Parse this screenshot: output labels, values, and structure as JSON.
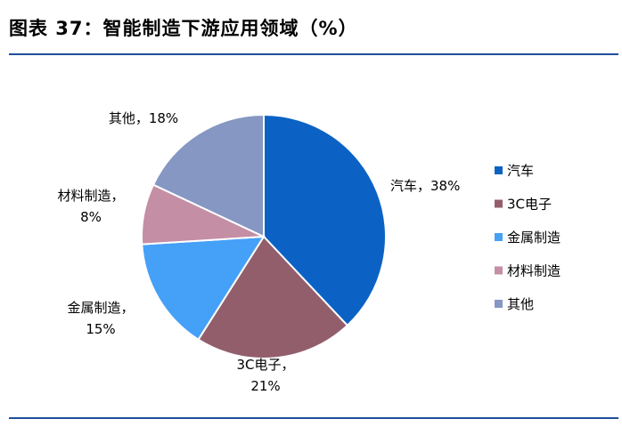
{
  "header": {
    "title": "图表 37：智能制造下游应用领域（%）"
  },
  "chart_data": {
    "type": "pie",
    "title": "",
    "unit": "%",
    "start_angle_deg": 0,
    "direction": "clockwise",
    "legend_position": "right",
    "slices": [
      {
        "name": "汽车",
        "value": 38,
        "label_lines": [
          "汽车，38%"
        ],
        "color": "#0b62c4"
      },
      {
        "name": "3C电子",
        "value": 21,
        "label_lines": [
          "3C电子，",
          "21%"
        ],
        "color": "#935e6b"
      },
      {
        "name": "金属制造",
        "value": 15,
        "label_lines": [
          "金属制造，",
          "15%"
        ],
        "color": "#45a0f7"
      },
      {
        "name": "材料制造",
        "value": 8,
        "label_lines": [
          "材料制造，",
          "8%"
        ],
        "color": "#c48ea5"
      },
      {
        "name": "其他",
        "value": 18,
        "label_lines": [
          "其他，18%"
        ],
        "color": "#8597c2"
      }
    ]
  }
}
